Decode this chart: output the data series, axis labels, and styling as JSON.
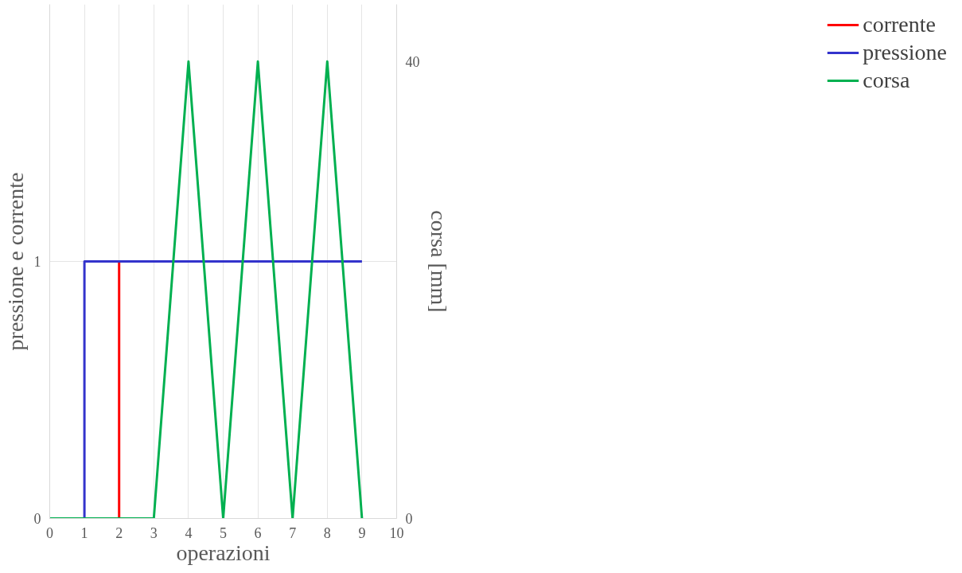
{
  "chart_data": {
    "type": "line",
    "xlabel": "operazioni",
    "ylabel": "pressione e corrente",
    "y2label": "corsa [mm]",
    "xlim": [
      0,
      10
    ],
    "xticks": [
      0,
      1,
      2,
      3,
      4,
      5,
      6,
      7,
      8,
      9,
      10
    ],
    "ylim": [
      0,
      2
    ],
    "yticks": [
      0,
      1
    ],
    "y2lim": [
      0,
      45
    ],
    "y2ticks": [
      0,
      40
    ],
    "grid": true,
    "legend": "right",
    "marker": "none",
    "line_style": "solid",
    "series": [
      {
        "name": "corrente",
        "color": "#ff0000",
        "x": [
          0,
          2,
          2
        ],
        "values": [
          0,
          0,
          1
        ]
      },
      {
        "name": "pressione",
        "color": "#3333cc",
        "x": [
          0,
          1,
          1,
          9
        ],
        "values": [
          0,
          0,
          1,
          1
        ]
      },
      {
        "name": "corsa",
        "color": "#00b050",
        "axis": "y2",
        "x": [
          0,
          3,
          4,
          5,
          6,
          7,
          8,
          9
        ],
        "values": [
          0,
          0,
          40,
          0,
          40,
          0,
          40,
          0
        ]
      }
    ]
  }
}
